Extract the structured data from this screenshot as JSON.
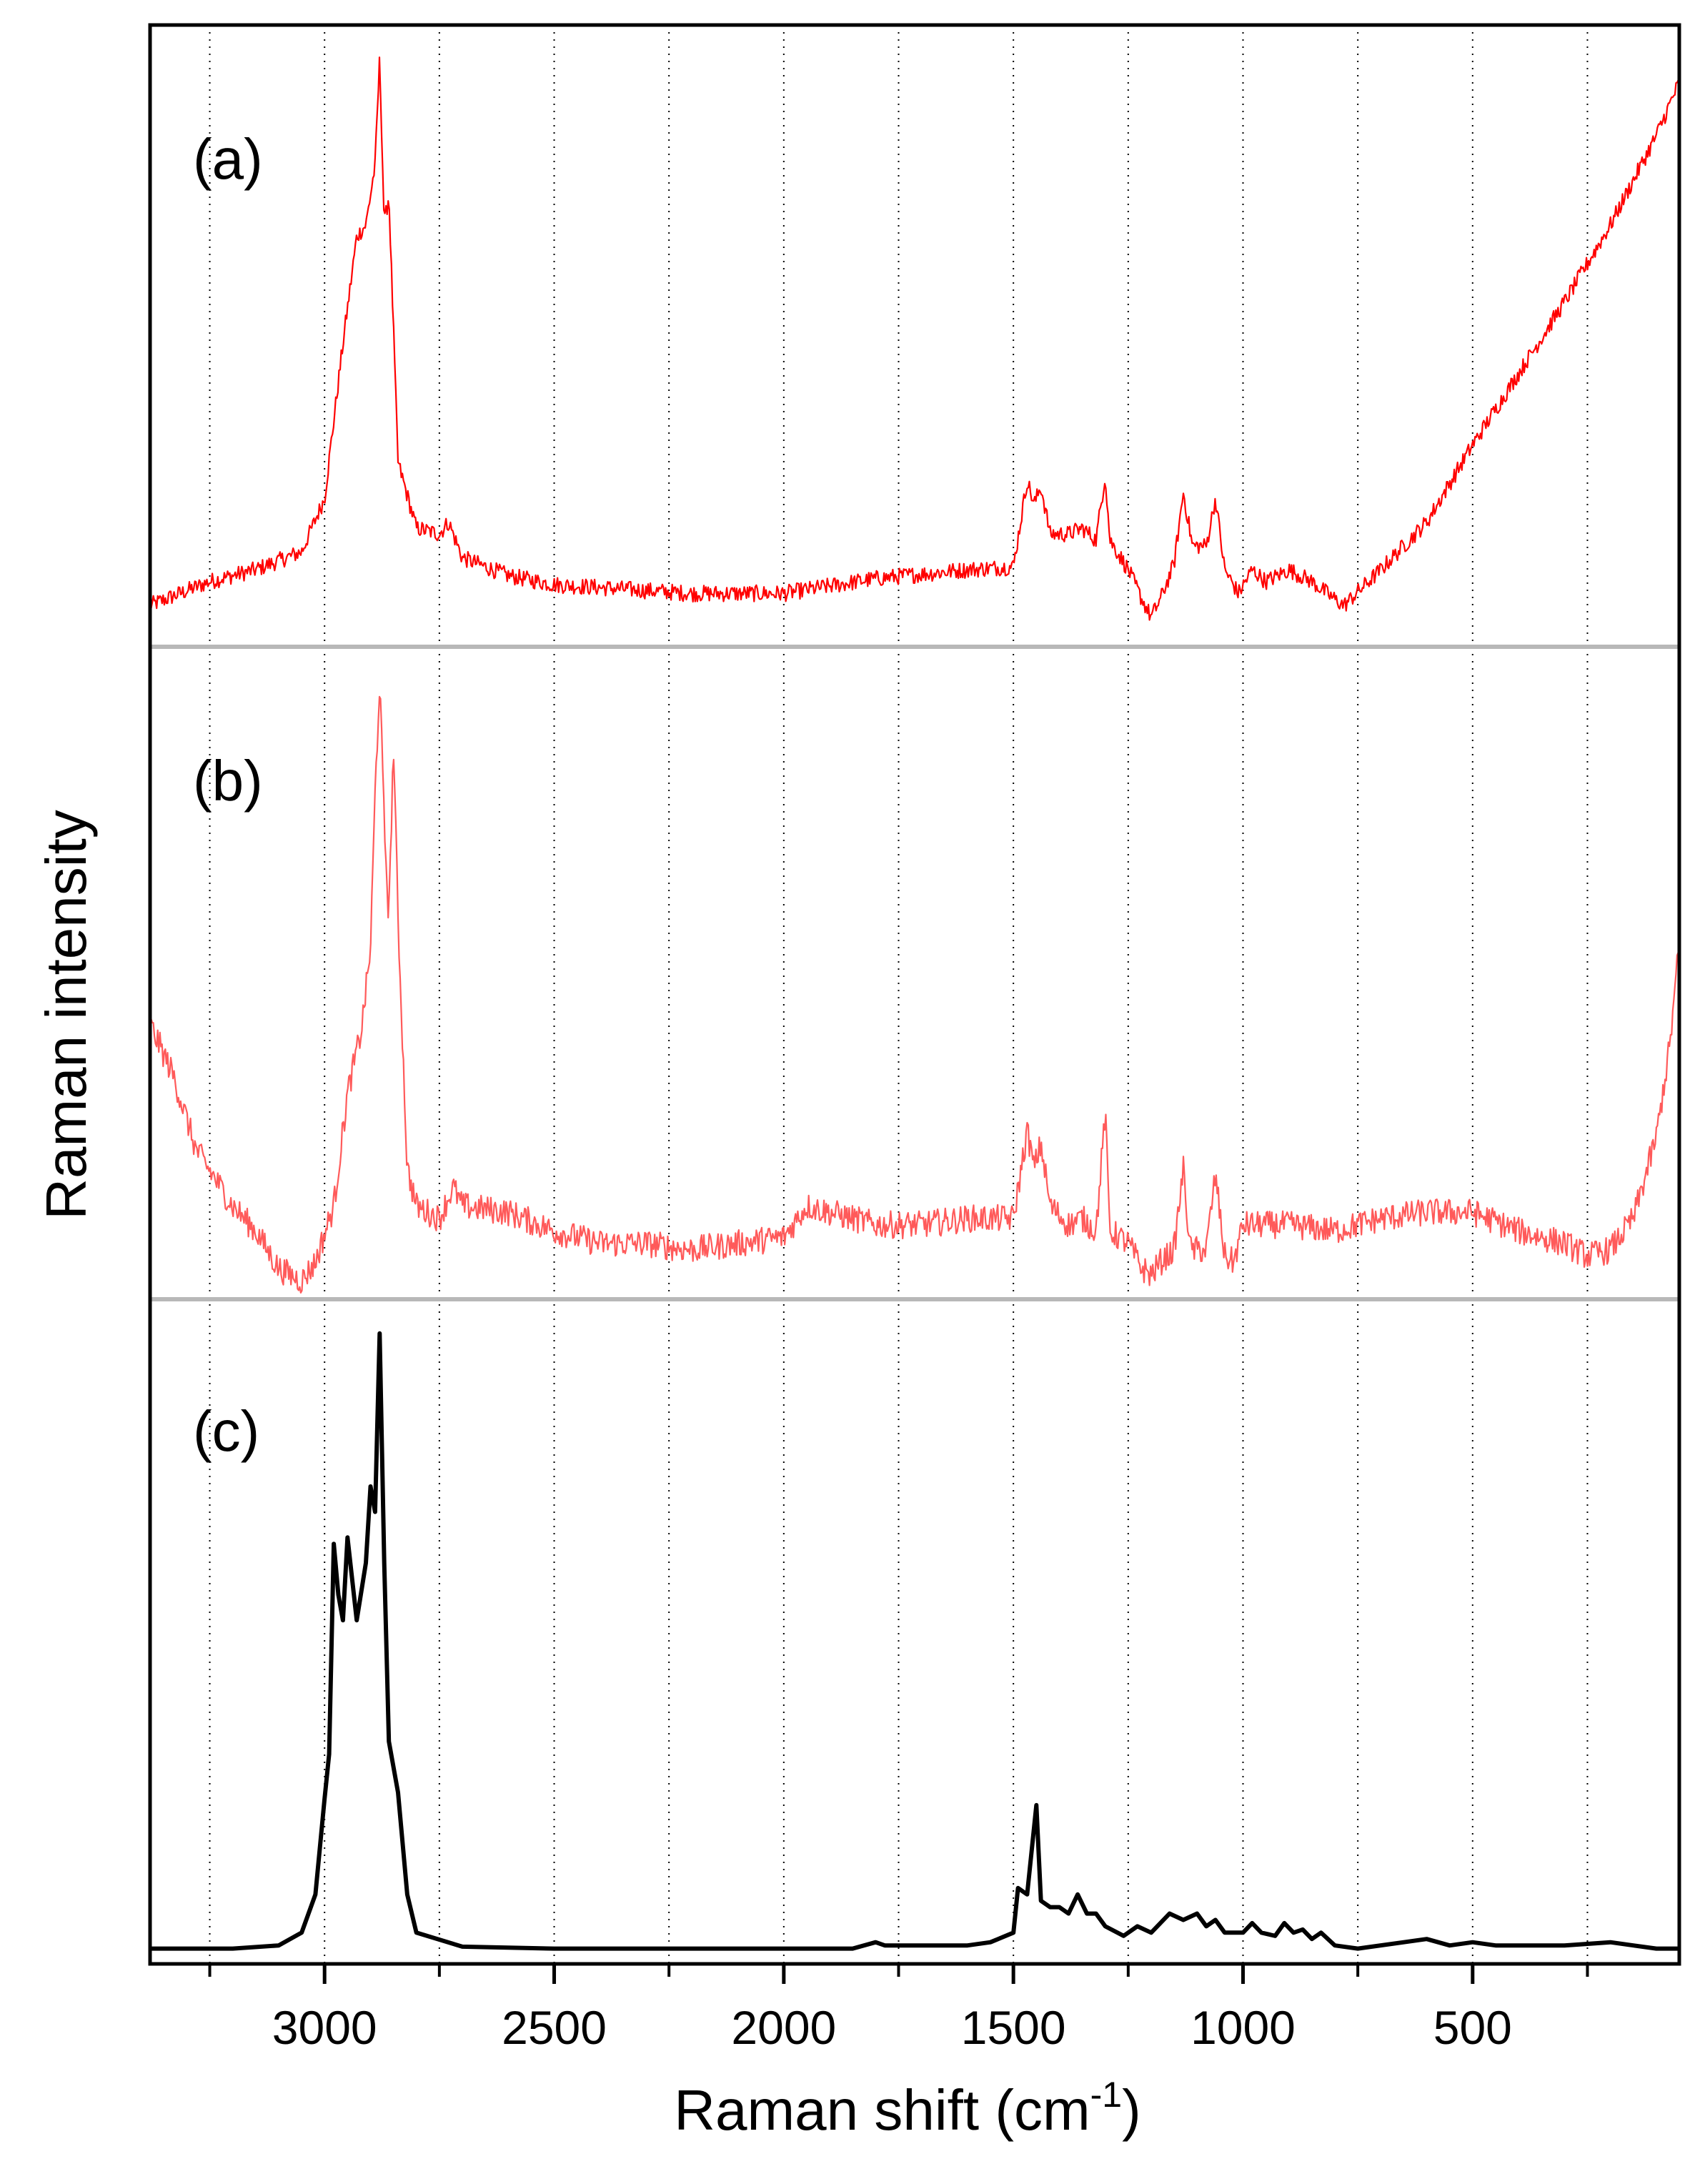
{
  "chart_data": {
    "type": "line",
    "xlabel": "Raman shift (cm",
    "xlabel_sup": "-1",
    "xlabel_end": ")",
    "ylabel": "Raman intensity",
    "xlim": [
      3380,
      50
    ],
    "x_reversed": true,
    "x_ticks": [
      3000,
      2500,
      2000,
      1500,
      1000,
      500
    ],
    "x_tick_labels": [
      "3000",
      "2500",
      "2000",
      "1500",
      "1000",
      "500"
    ],
    "gridlines_x": [
      3250,
      3000,
      2750,
      2500,
      2250,
      2000,
      1750,
      1500,
      1250,
      1000,
      750,
      500,
      250
    ],
    "grid": "dotted vertical",
    "y_ticks_shown": false,
    "panels": [
      {
        "label": "(a)",
        "color": "#ff0000",
        "stroke": "thin",
        "noise": 0.014,
        "points": [
          [
            3380,
            0.06
          ],
          [
            3250,
            0.1
          ],
          [
            3150,
            0.12
          ],
          [
            3050,
            0.15
          ],
          [
            3000,
            0.24
          ],
          [
            2960,
            0.5
          ],
          [
            2930,
            0.68
          ],
          [
            2910,
            0.7
          ],
          [
            2890,
            0.8
          ],
          [
            2880,
            0.98
          ],
          [
            2870,
            0.7
          ],
          [
            2860,
            0.75
          ],
          [
            2840,
            0.3
          ],
          [
            2800,
            0.19
          ],
          [
            2750,
            0.18
          ],
          [
            2730,
            0.2
          ],
          [
            2700,
            0.14
          ],
          [
            2600,
            0.11
          ],
          [
            2500,
            0.095
          ],
          [
            2300,
            0.085
          ],
          [
            2200,
            0.08
          ],
          [
            2000,
            0.08
          ],
          [
            1800,
            0.105
          ],
          [
            1600,
            0.12
          ],
          [
            1500,
            0.125
          ],
          [
            1470,
            0.27
          ],
          [
            1455,
            0.23
          ],
          [
            1440,
            0.26
          ],
          [
            1420,
            0.18
          ],
          [
            1380,
            0.18
          ],
          [
            1350,
            0.19
          ],
          [
            1320,
            0.17
          ],
          [
            1300,
            0.28
          ],
          [
            1290,
            0.17
          ],
          [
            1250,
            0.12
          ],
          [
            1220,
            0.07
          ],
          [
            1200,
            0.04
          ],
          [
            1180,
            0.07
          ],
          [
            1150,
            0.13
          ],
          [
            1130,
            0.25
          ],
          [
            1110,
            0.16
          ],
          [
            1080,
            0.16
          ],
          [
            1060,
            0.24
          ],
          [
            1040,
            0.12
          ],
          [
            1010,
            0.08
          ],
          [
            980,
            0.12
          ],
          [
            950,
            0.1
          ],
          [
            900,
            0.12
          ],
          [
            850,
            0.1
          ],
          [
            800,
            0.07
          ],
          [
            780,
            0.06
          ],
          [
            700,
            0.12
          ],
          [
            600,
            0.2
          ],
          [
            500,
            0.33
          ],
          [
            400,
            0.45
          ],
          [
            300,
            0.57
          ],
          [
            200,
            0.7
          ],
          [
            100,
            0.85
          ],
          [
            50,
            0.94
          ]
        ]
      },
      {
        "label": "(b)",
        "color": "#ff5a5a",
        "stroke": "thin",
        "noise": 0.022,
        "points": [
          [
            3380,
            0.43
          ],
          [
            3330,
            0.35
          ],
          [
            3280,
            0.23
          ],
          [
            3200,
            0.14
          ],
          [
            3150,
            0.1
          ],
          [
            3100,
            0.04
          ],
          [
            3050,
            0.02
          ],
          [
            3020,
            0.05
          ],
          [
            2980,
            0.14
          ],
          [
            2950,
            0.32
          ],
          [
            2920,
            0.42
          ],
          [
            2900,
            0.55
          ],
          [
            2890,
            0.8
          ],
          [
            2880,
            0.98
          ],
          [
            2870,
            0.75
          ],
          [
            2860,
            0.6
          ],
          [
            2850,
            0.88
          ],
          [
            2840,
            0.6
          ],
          [
            2820,
            0.2
          ],
          [
            2800,
            0.14
          ],
          [
            2750,
            0.12
          ],
          [
            2720,
            0.17
          ],
          [
            2700,
            0.14
          ],
          [
            2600,
            0.13
          ],
          [
            2500,
            0.1
          ],
          [
            2400,
            0.08
          ],
          [
            2300,
            0.08
          ],
          [
            2200,
            0.07
          ],
          [
            2100,
            0.08
          ],
          [
            2000,
            0.09
          ],
          [
            1950,
            0.14
          ],
          [
            1900,
            0.13
          ],
          [
            1800,
            0.11
          ],
          [
            1700,
            0.11
          ],
          [
            1600,
            0.12
          ],
          [
            1500,
            0.12
          ],
          [
            1470,
            0.26
          ],
          [
            1455,
            0.2
          ],
          [
            1440,
            0.24
          ],
          [
            1420,
            0.14
          ],
          [
            1380,
            0.11
          ],
          [
            1350,
            0.12
          ],
          [
            1320,
            0.1
          ],
          [
            1300,
            0.29
          ],
          [
            1290,
            0.1
          ],
          [
            1250,
            0.08
          ],
          [
            1220,
            0.04
          ],
          [
            1200,
            0.03
          ],
          [
            1180,
            0.05
          ],
          [
            1150,
            0.07
          ],
          [
            1130,
            0.2
          ],
          [
            1115,
            0.07
          ],
          [
            1080,
            0.07
          ],
          [
            1060,
            0.19
          ],
          [
            1040,
            0.06
          ],
          [
            1020,
            0.05
          ],
          [
            1000,
            0.11
          ],
          [
            900,
            0.11
          ],
          [
            800,
            0.1
          ],
          [
            700,
            0.12
          ],
          [
            600,
            0.13
          ],
          [
            500,
            0.13
          ],
          [
            400,
            0.1
          ],
          [
            300,
            0.08
          ],
          [
            250,
            0.06
          ],
          [
            200,
            0.07
          ],
          [
            150,
            0.12
          ],
          [
            100,
            0.25
          ],
          [
            70,
            0.4
          ],
          [
            50,
            0.56
          ]
        ]
      },
      {
        "label": "(c)",
        "color": "#000000",
        "stroke": "thick",
        "noise": 0,
        "points": [
          [
            3380,
            0.015
          ],
          [
            3200,
            0.015
          ],
          [
            3100,
            0.02
          ],
          [
            3050,
            0.04
          ],
          [
            3020,
            0.1
          ],
          [
            3000,
            0.25
          ],
          [
            2990,
            0.32
          ],
          [
            2980,
            0.65
          ],
          [
            2970,
            0.57
          ],
          [
            2960,
            0.53
          ],
          [
            2950,
            0.66
          ],
          [
            2930,
            0.53
          ],
          [
            2910,
            0.62
          ],
          [
            2900,
            0.74
          ],
          [
            2890,
            0.7
          ],
          [
            2880,
            0.98
          ],
          [
            2870,
            0.62
          ],
          [
            2860,
            0.34
          ],
          [
            2840,
            0.26
          ],
          [
            2820,
            0.1
          ],
          [
            2800,
            0.04
          ],
          [
            2700,
            0.018
          ],
          [
            2500,
            0.015
          ],
          [
            2000,
            0.015
          ],
          [
            1850,
            0.015
          ],
          [
            1800,
            0.025
          ],
          [
            1780,
            0.02
          ],
          [
            1700,
            0.02
          ],
          [
            1600,
            0.02
          ],
          [
            1550,
            0.025
          ],
          [
            1500,
            0.04
          ],
          [
            1490,
            0.11
          ],
          [
            1470,
            0.1
          ],
          [
            1450,
            0.24
          ],
          [
            1440,
            0.09
          ],
          [
            1420,
            0.08
          ],
          [
            1400,
            0.08
          ],
          [
            1380,
            0.07
          ],
          [
            1360,
            0.1
          ],
          [
            1340,
            0.07
          ],
          [
            1320,
            0.07
          ],
          [
            1300,
            0.05
          ],
          [
            1260,
            0.035
          ],
          [
            1230,
            0.05
          ],
          [
            1200,
            0.04
          ],
          [
            1160,
            0.07
          ],
          [
            1130,
            0.06
          ],
          [
            1100,
            0.07
          ],
          [
            1080,
            0.05
          ],
          [
            1060,
            0.06
          ],
          [
            1040,
            0.04
          ],
          [
            1000,
            0.04
          ],
          [
            980,
            0.055
          ],
          [
            960,
            0.04
          ],
          [
            930,
            0.035
          ],
          [
            910,
            0.055
          ],
          [
            890,
            0.04
          ],
          [
            870,
            0.045
          ],
          [
            850,
            0.03
          ],
          [
            830,
            0.04
          ],
          [
            800,
            0.02
          ],
          [
            750,
            0.015
          ],
          [
            650,
            0.025
          ],
          [
            600,
            0.03
          ],
          [
            550,
            0.02
          ],
          [
            500,
            0.025
          ],
          [
            450,
            0.02
          ],
          [
            400,
            0.02
          ],
          [
            300,
            0.02
          ],
          [
            200,
            0.025
          ],
          [
            150,
            0.02
          ],
          [
            100,
            0.015
          ],
          [
            50,
            0.015
          ]
        ]
      }
    ]
  }
}
